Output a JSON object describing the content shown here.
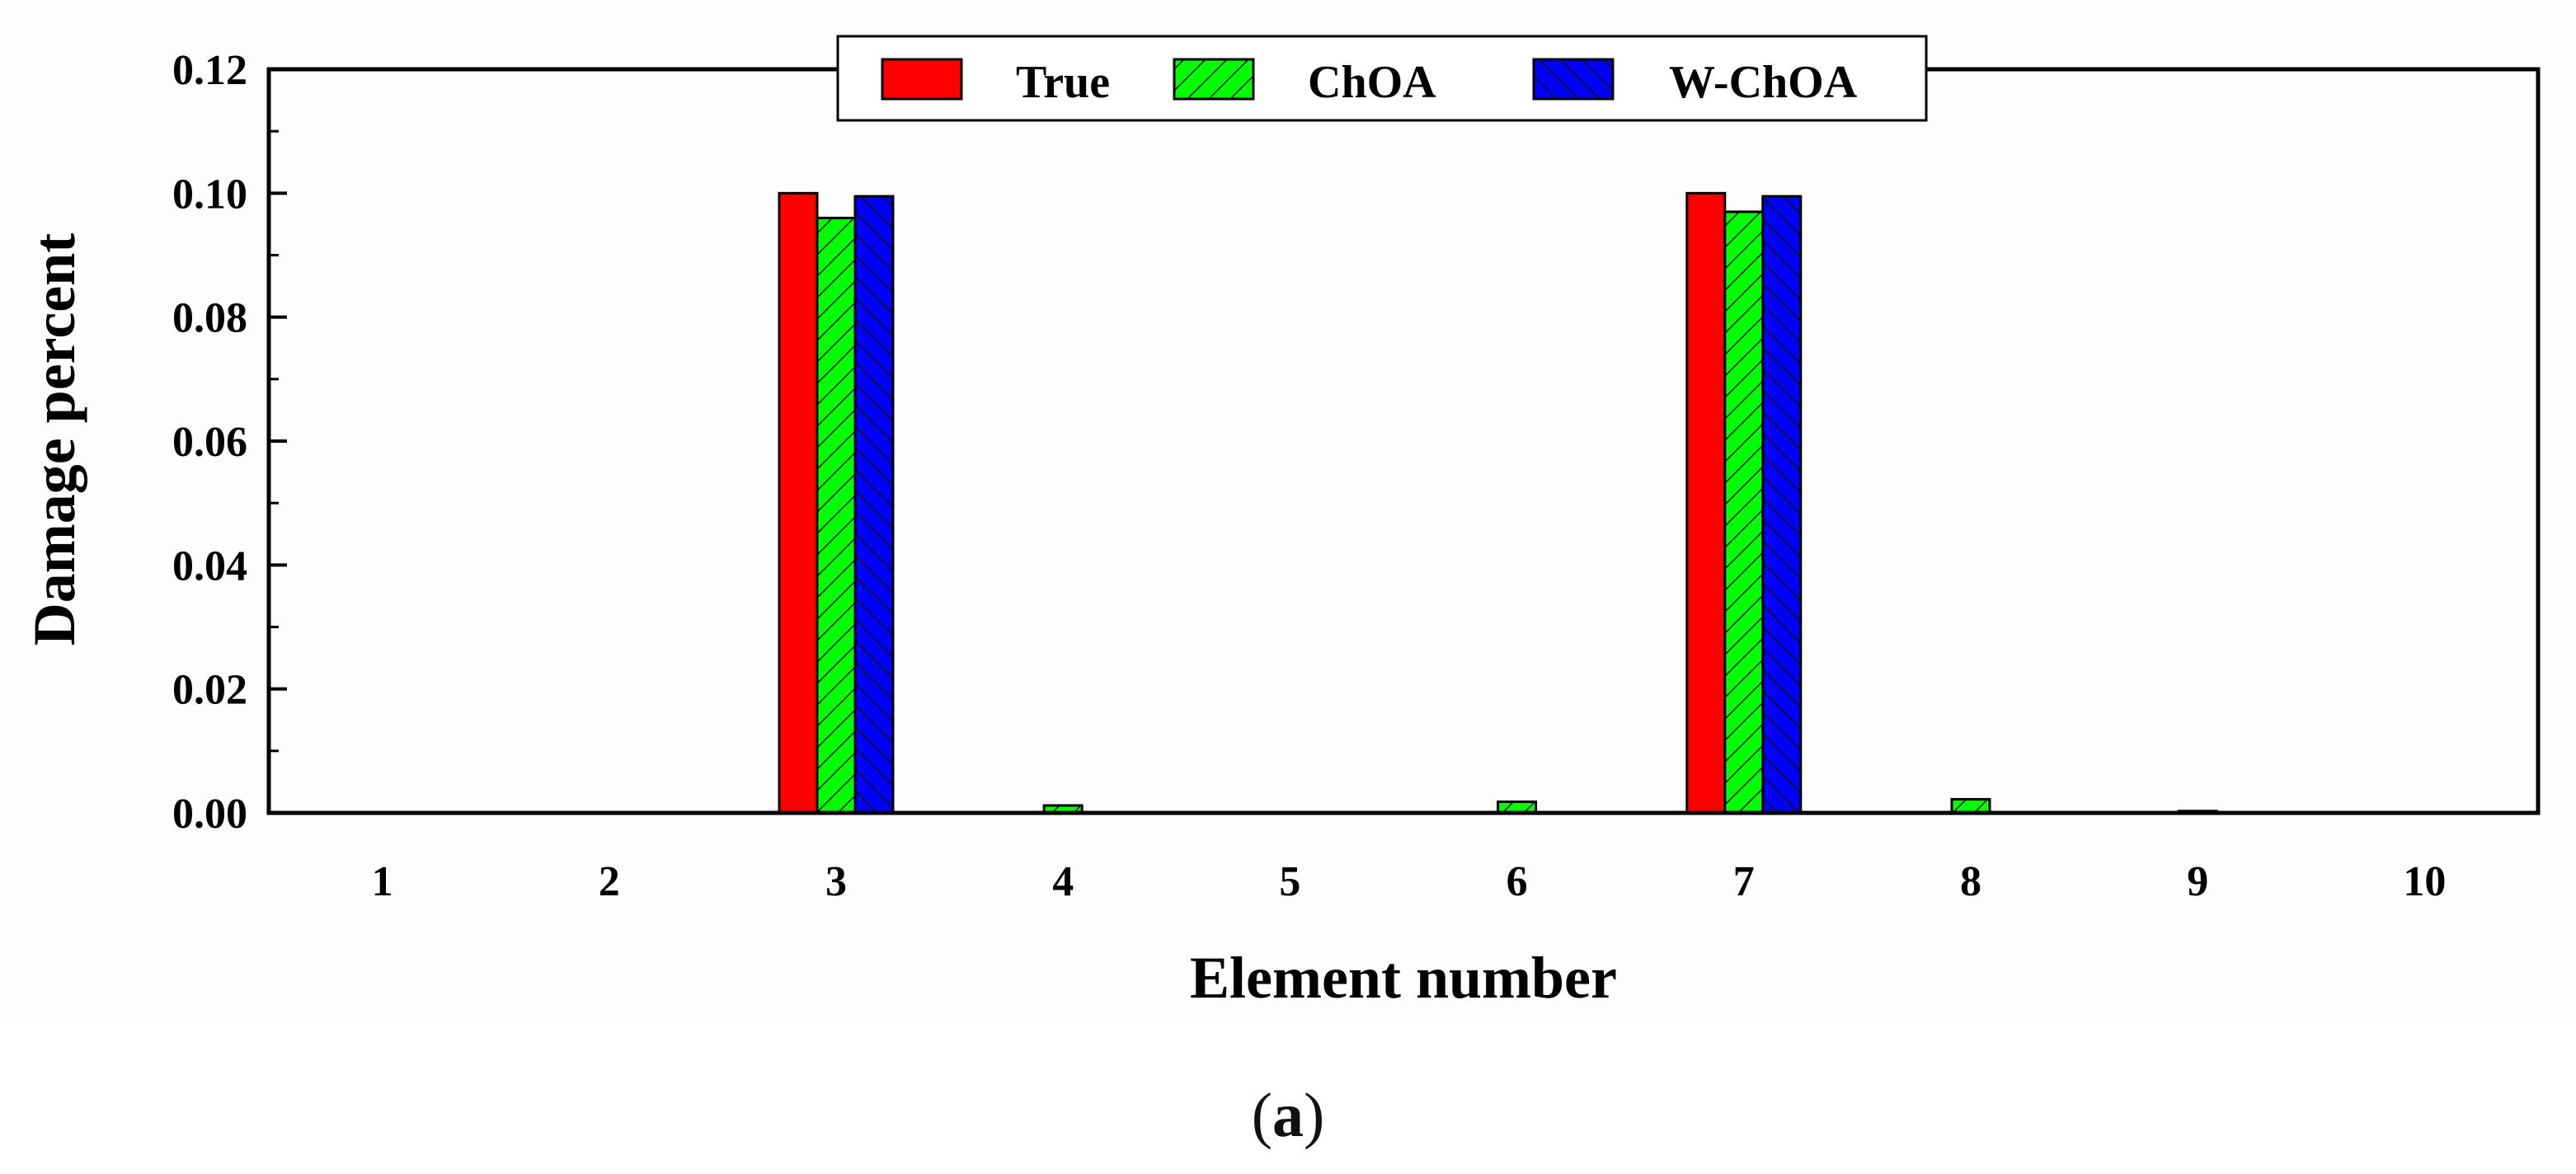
{
  "panel_label": {
    "open": "(",
    "letter": "a",
    "close": ")"
  },
  "chart_data": {
    "type": "bar",
    "title": "",
    "xlabel": "Element number",
    "ylabel": "Damage percent",
    "categories": [
      "1",
      "2",
      "3",
      "4",
      "5",
      "6",
      "7",
      "8",
      "9",
      "10"
    ],
    "ylim": [
      0,
      0.12
    ],
    "yticks": [
      "0.00",
      "0.02",
      "0.04",
      "0.06",
      "0.08",
      "0.10",
      "0.12"
    ],
    "series": [
      {
        "name": "True",
        "color": "#ff0000",
        "pattern": "none",
        "values": [
          0,
          0,
          0.1,
          0,
          0,
          0,
          0.1,
          0,
          0,
          0
        ]
      },
      {
        "name": "ChOA",
        "color": "#00ff00",
        "pattern": "forward-hatch",
        "values": [
          0,
          0,
          0.096,
          0.0012,
          0,
          0.0018,
          0.097,
          0.0022,
          0.0003,
          0
        ]
      },
      {
        "name": "W-ChOA",
        "color": "#0000ff",
        "pattern": "back-hatch",
        "values": [
          0,
          0,
          0.0995,
          0,
          0,
          0,
          0.0995,
          0,
          0,
          0
        ]
      }
    ],
    "legend_position": "top-center",
    "grid": false
  }
}
